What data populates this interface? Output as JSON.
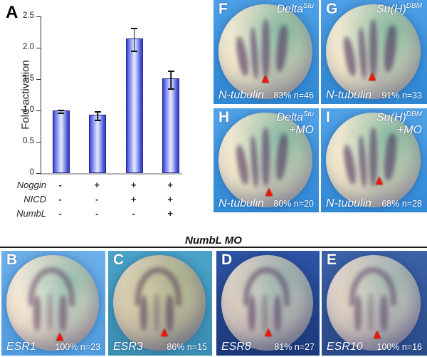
{
  "figure": {
    "panel_a_letter": "A",
    "numbl_mo_title": "NumbL MO"
  },
  "chart_data": {
    "type": "bar",
    "title": "",
    "xlabel": "",
    "ylabel": "Fold-activation",
    "ylim": [
      0,
      2.5
    ],
    "yticks": [
      "0",
      "0.5",
      "1.0",
      "1.5",
      "2.0",
      "2.5"
    ],
    "grid": false,
    "legend": "none",
    "values": [
      1.0,
      0.93,
      2.15,
      1.51
    ],
    "errors": [
      0.01,
      0.06,
      0.17,
      0.13
    ],
    "conditions": {
      "rows": [
        {
          "label": "Noggin",
          "signs": [
            "-",
            "+",
            "+",
            "+"
          ]
        },
        {
          "label": "NICD",
          "signs": [
            "-",
            "-",
            "+",
            "+"
          ]
        },
        {
          "label": "NumbL",
          "signs": [
            "-",
            "-",
            "-",
            "+"
          ]
        }
      ]
    }
  },
  "panels": {
    "F": {
      "letter": "F",
      "genotype_base": "Delta",
      "genotype_sup": "Stu",
      "probe": "N-tubulin",
      "stats": "83% n=46"
    },
    "G": {
      "letter": "G",
      "genotype_base": "Su(H)",
      "genotype_sup": "DBM",
      "probe": "N-tubulin",
      "stats": "91% n=33"
    },
    "H": {
      "letter": "H",
      "genotype_base": "Delta",
      "genotype_sup": "Stu",
      "mo": "+MO",
      "probe": "N-tubulin",
      "stats": "80% n=20"
    },
    "I": {
      "letter": "I",
      "genotype_base": "Su(H)",
      "genotype_sup": "DBM",
      "mo": "+MO",
      "probe": "N-tubulin",
      "stats": "68% n=28"
    },
    "B": {
      "letter": "B",
      "probe": "ESR1",
      "stats": "100% n=23"
    },
    "C": {
      "letter": "C",
      "probe": "ESR3",
      "stats": "86% n=15"
    },
    "D": {
      "letter": "D",
      "probe": "ESR8",
      "stats": "81% n=27"
    },
    "E": {
      "letter": "E",
      "probe": "ESR10",
      "stats": "100% n=16"
    }
  },
  "colors": {
    "arrowhead_red": "#ea1808",
    "bar_edge_blue": "#3c43cc",
    "bar_center_blue": "#e6eafe",
    "bar_border_navy": "#23238f",
    "panel_bg_blue": "#3f97dc",
    "panel_bg_light_blue": "#5fa8e6",
    "panel_bg_teal": "#45a0c4",
    "panel_bg_navy_dark": "#24478f",
    "panel_bg_navy": "#33548f"
  }
}
